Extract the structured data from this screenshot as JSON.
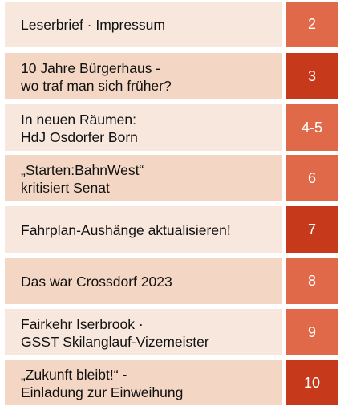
{
  "colors": {
    "light_bg": "#f8e7dc",
    "dark_bg": "#f3d6c3",
    "accent_light": "#e0694a",
    "accent_dark": "#c63a1b"
  },
  "toc": {
    "entries": [
      {
        "lines": [
          "Leserbrief · Impressum"
        ],
        "page": "2"
      },
      {
        "lines": [
          "10 Jahre Bürgerhaus -",
          "wo traf man sich früher?"
        ],
        "page": "3"
      },
      {
        "lines": [
          "In neuen Räumen:",
          "HdJ Osdorfer Born"
        ],
        "page": "4-5"
      },
      {
        "lines": [
          "„Starten:BahnWest“",
          "kritisiert Senat"
        ],
        "page": "6"
      },
      {
        "lines": [
          "Fahrplan-Aushänge aktualisieren!"
        ],
        "page": "7"
      },
      {
        "lines": [
          "Das war Crossdorf 2023"
        ],
        "page": "8"
      },
      {
        "lines": [
          "Fairkehr Iserbrook ·",
          "GSST Skilanglauf-Vizemeister"
        ],
        "page": "9"
      },
      {
        "lines": [
          "„Zukunft bleibt!“ -",
          "Einladung zur Einweihung"
        ],
        "page": "10"
      }
    ]
  }
}
